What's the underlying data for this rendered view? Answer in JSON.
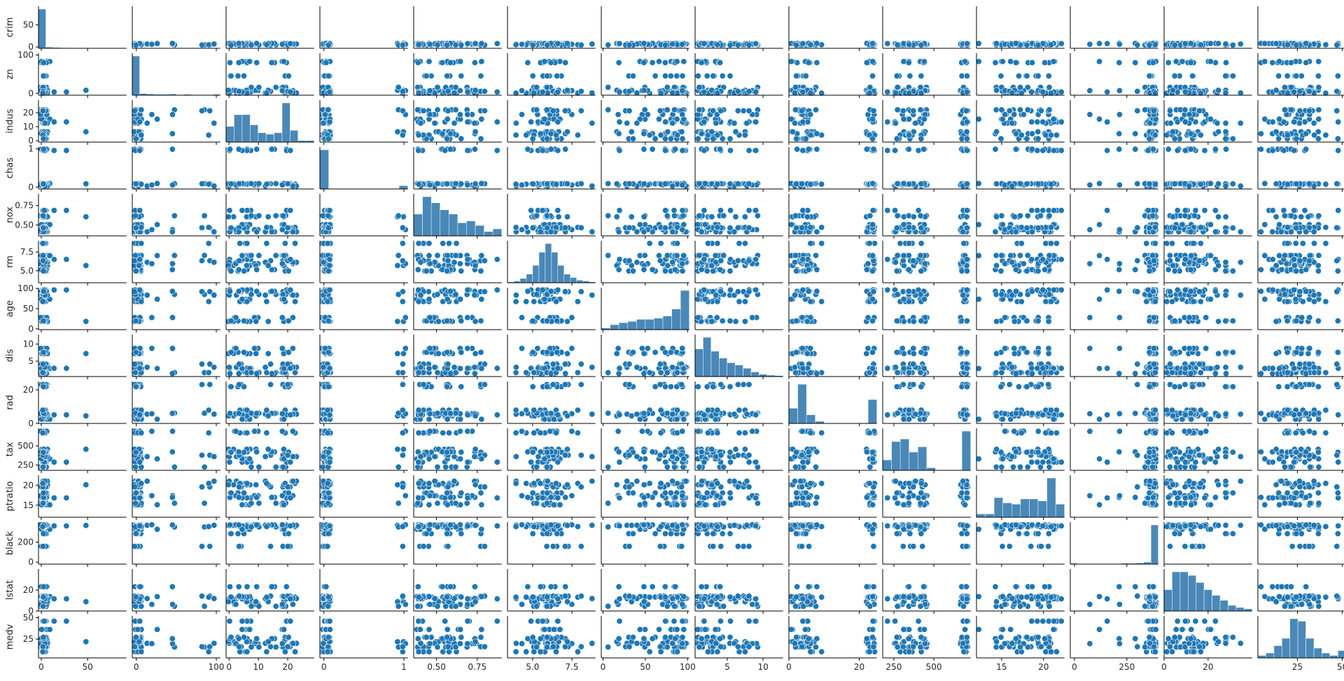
{
  "chart_data": {
    "type": "scatter",
    "subtype": "pairplot",
    "title": "",
    "marker_color": "#1f77b4",
    "hist_color": "#4a88b8",
    "grid": false,
    "legend": "none",
    "variables": [
      {
        "name": "crim",
        "range": [
          -3,
          92
        ],
        "ticks": [
          {
            "v": 0,
            "label": "0"
          },
          {
            "v": 50,
            "label": "50"
          }
        ],
        "hist": [
          0.98,
          0.03,
          0.02,
          0.01,
          0.01,
          0.005,
          0.005,
          0,
          0,
          0,
          0,
          0.003
        ]
      },
      {
        "name": "zn",
        "range": [
          -5,
          105
        ],
        "ticks": [
          {
            "v": 0,
            "label": "0"
          },
          {
            "v": 100,
            "label": "100"
          }
        ],
        "hist": [
          0.95,
          0.04,
          0.03,
          0.02,
          0.02,
          0.03,
          0.01,
          0.02,
          0.01,
          0.01,
          0.01,
          0.02
        ]
      },
      {
        "name": "indus",
        "range": [
          -1,
          29
        ],
        "ticks": [
          {
            "v": 0,
            "label": "0"
          },
          {
            "v": 10,
            "label": "10"
          },
          {
            "v": 20,
            "label": "20"
          }
        ],
        "hist": [
          0.2,
          0.35,
          0.35,
          0.22,
          0.12,
          0.1,
          0.12,
          0.5,
          0.15,
          0.02,
          0.02
        ]
      },
      {
        "name": "chas",
        "range": [
          -0.05,
          1.05
        ],
        "ticks": [
          {
            "v": 0,
            "label": "0"
          },
          {
            "v": 1,
            "label": "1"
          }
        ],
        "hist": [
          0.95,
          0,
          0,
          0,
          0,
          0,
          0,
          0,
          0,
          0.08
        ]
      },
      {
        "name": "nox",
        "range": [
          0.36,
          0.9
        ],
        "ticks": [
          {
            "v": 0.5,
            "label": "0.50"
          },
          {
            "v": 0.75,
            "label": "0.75"
          }
        ],
        "hist": [
          0.25,
          0.45,
          0.38,
          0.3,
          0.25,
          0.15,
          0.17,
          0.12,
          0.05,
          0.08
        ]
      },
      {
        "name": "rm",
        "range": [
          3.4,
          9.0
        ],
        "ticks": [
          {
            "v": 5.0,
            "label": "5.0"
          },
          {
            "v": 7.5,
            "label": "7.5"
          }
        ],
        "hist": [
          0.01,
          0.02,
          0.05,
          0.1,
          0.2,
          0.35,
          0.45,
          0.35,
          0.2,
          0.1,
          0.06,
          0.03,
          0.02,
          0.01
        ]
      },
      {
        "name": "age",
        "range": [
          -2,
          102
        ],
        "ticks": [
          {
            "v": 0,
            "label": "0"
          },
          {
            "v": 50,
            "label": "50"
          },
          {
            "v": 100,
            "label": "100"
          }
        ],
        "hist": [
          0.04,
          0.12,
          0.17,
          0.2,
          0.25,
          0.25,
          0.28,
          0.33,
          0.5,
          0.95
        ]
      },
      {
        "name": "dis",
        "range": [
          0.5,
          12.8
        ],
        "ticks": [
          {
            "v": 5,
            "label": "5"
          },
          {
            "v": 10,
            "label": "10"
          }
        ],
        "hist": [
          0.6,
          0.85,
          0.55,
          0.4,
          0.3,
          0.25,
          0.18,
          0.1,
          0.05,
          0.03,
          0.02
        ]
      },
      {
        "name": "rad",
        "range": [
          0,
          25
        ],
        "ticks": [
          {
            "v": 0,
            "label": "0"
          },
          {
            "v": 20,
            "label": "20"
          }
        ],
        "hist": [
          0.35,
          0.9,
          0.2,
          0.05,
          0,
          0,
          0,
          0,
          0,
          0.55
        ]
      },
      {
        "name": "tax",
        "range": [
          180,
          730
        ],
        "ticks": [
          {
            "v": 250,
            "label": "250"
          },
          {
            "v": 500,
            "label": "500"
          }
        ],
        "hist": [
          0.2,
          0.55,
          0.6,
          0.35,
          0.45,
          0.05,
          0,
          0,
          0,
          0.75
        ]
      },
      {
        "name": "ptratio",
        "range": [
          12,
          22.5
        ],
        "ticks": [
          {
            "v": 15,
            "label": "15"
          },
          {
            "v": 20,
            "label": "20"
          }
        ],
        "hist": [
          0.05,
          0.05,
          0.3,
          0.22,
          0.2,
          0.28,
          0.28,
          0.25,
          0.6,
          0.2
        ]
      },
      {
        "name": "black",
        "range": [
          -20,
          400
        ],
        "ticks": [
          {
            "v": 0,
            "label": "0"
          },
          {
            "v": 250,
            "label": "250"
          }
        ],
        "ytick_labels": [
          {
            "v": 0,
            "label": "0"
          },
          {
            "v": 200,
            "label": "200"
          }
        ],
        "hist": [
          0.02,
          0.01,
          0.01,
          0.01,
          0.01,
          0.01,
          0.01,
          0.02,
          0.02,
          0.03,
          0.05,
          0.95
        ]
      },
      {
        "name": "lstat",
        "range": [
          0,
          40
        ],
        "ticks": [
          {
            "v": 0,
            "label": "0"
          },
          {
            "v": 20,
            "label": "20"
          }
        ],
        "ytick_labels": [
          {
            "v": 0,
            "label": "0"
          },
          {
            "v": 20,
            "label": "20"
          }
        ],
        "hist": [
          0.3,
          0.55,
          0.55,
          0.5,
          0.4,
          0.3,
          0.22,
          0.15,
          0.08,
          0.05,
          0.03
        ]
      },
      {
        "name": "medv",
        "range": [
          3,
          52
        ],
        "ticks": [
          {
            "v": 25,
            "label": "25"
          },
          {
            "v": 50,
            "label": "50"
          }
        ],
        "hist": [
          0.05,
          0.1,
          0.25,
          0.4,
          0.8,
          0.75,
          0.4,
          0.2,
          0.1,
          0.05,
          0.15
        ]
      }
    ]
  }
}
